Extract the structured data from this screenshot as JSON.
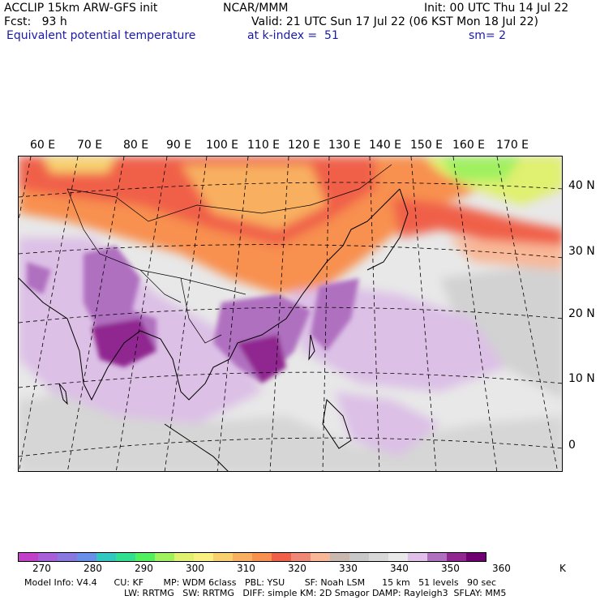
{
  "header": {
    "model_title": "ACCLIP 15km ARW-GFS init",
    "institution": "NCAR/MMM",
    "init_time": "Init: 00 UTC Thu 14 Jul 22",
    "forecast_hour": "Fcst:   93 h",
    "valid_time": "Valid: 21 UTC Sun 17 Jul 22 (06 KST Mon 18 Jul 22)",
    "field_name": "Equivalent potential temperature",
    "level": "at k-index =  51",
    "smoothing": "sm= 2"
  },
  "map": {
    "lon_labels": [
      "60 E",
      "70 E",
      "80 E",
      "90 E",
      "100 E",
      "110 E",
      "120 E",
      "130 E",
      "140 E",
      "150 E",
      "160 E",
      "170 E"
    ],
    "lat_labels": [
      "40 N",
      "30 N",
      "20 N",
      "10 N",
      "0"
    ]
  },
  "colorbar": {
    "unit": "K",
    "colors": [
      "#c040c8",
      "#a860d8",
      "#8878e0",
      "#6890e8",
      "#30c8c0",
      "#30e090",
      "#50f060",
      "#a0f060",
      "#e0f070",
      "#f8f080",
      "#f8d070",
      "#f8b060",
      "#f89050",
      "#f06048",
      "#f08878",
      "#f8b898",
      "#c8b8b0",
      "#c8c8c8",
      "#d8d8d8",
      "#e8e8e8",
      "#e0c0e8",
      "#b070c0",
      "#902890",
      "#700070"
    ],
    "tick_labels": [
      "270",
      "280",
      "290",
      "300",
      "310",
      "320",
      "330",
      "340",
      "350",
      "360"
    ]
  },
  "model_info": {
    "line1": "Model Info: V4.4      CU: KF       MP: WDM 6class   PBL: YSU       SF: Noah LSM      15 km   51 levels   90 sec",
    "line2": "LW: RRTMG   SW: RRTMG   DIFF: simple KM: 2D Smagor DAMP: Rayleigh3  SFLAY: MM5"
  }
}
